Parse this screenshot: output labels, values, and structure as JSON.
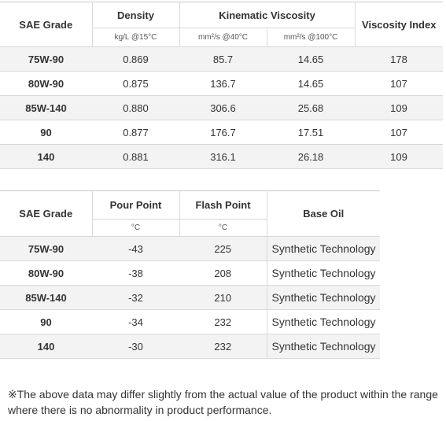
{
  "viscosity_table": {
    "headers": {
      "grade": "SAE Grade",
      "density": "Density",
      "kinematic": "Kinematic Viscosity",
      "vi": "Viscosity Index"
    },
    "units": {
      "density": "kg/L @15°C",
      "kv40": "mm²/s @40°C",
      "kv100": "mm²/s @100°C"
    },
    "rows": [
      {
        "grade": "75W-90",
        "density": "0.869",
        "kv40": "85.7",
        "kv100": "14.65",
        "vi": "178"
      },
      {
        "grade": "80W-90",
        "density": "0.875",
        "kv40": "136.7",
        "kv100": "14.65",
        "vi": "107"
      },
      {
        "grade": "85W-140",
        "density": "0.880",
        "kv40": "306.6",
        "kv100": "25.68",
        "vi": "109"
      },
      {
        "grade": "90",
        "density": "0.877",
        "kv40": "176.7",
        "kv100": "17.51",
        "vi": "107"
      },
      {
        "grade": "140",
        "density": "0.881",
        "kv40": "316.1",
        "kv100": "26.18",
        "vi": "109"
      }
    ]
  },
  "point_table": {
    "headers": {
      "grade": "SAE Grade",
      "pour": "Pour Point",
      "flash": "Flash Point",
      "base": "Base Oil"
    },
    "units": {
      "pour": "°C",
      "flash": "°C"
    },
    "rows": [
      {
        "grade": "75W-90",
        "pour": "-43",
        "flash": "225",
        "base": "Synthetic Technology"
      },
      {
        "grade": "80W-90",
        "pour": "-38",
        "flash": "208",
        "base": "Synthetic Technology"
      },
      {
        "grade": "85W-140",
        "pour": "-32",
        "flash": "210",
        "base": "Synthetic Technology"
      },
      {
        "grade": "90",
        "pour": "-34",
        "flash": "232",
        "base": "Synthetic Technology"
      },
      {
        "grade": "140",
        "pour": "-30",
        "flash": "232",
        "base": "Synthetic Technology"
      }
    ]
  },
  "footnote": "※The above data may differ slightly from the actual value of the product within the range where there is no abnormality in product performance."
}
